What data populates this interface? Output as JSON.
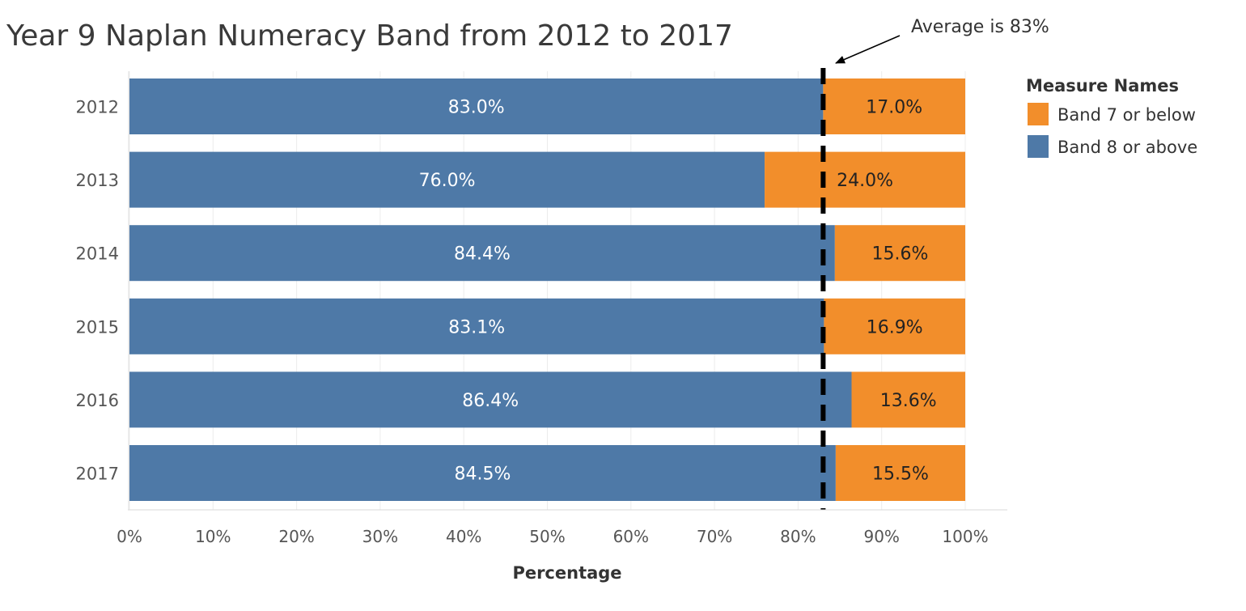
{
  "chart_data": {
    "type": "bar",
    "orientation": "horizontal",
    "stacked": true,
    "title": "Year 9 Naplan Numeracy Band from 2012 to 2017",
    "xlabel": "Percentage",
    "ylabel": "",
    "xlim": [
      0,
      100
    ],
    "x_ticks": [
      "0%",
      "10%",
      "20%",
      "30%",
      "40%",
      "50%",
      "60%",
      "70%",
      "80%",
      "90%",
      "100%"
    ],
    "categories": [
      "2012",
      "2013",
      "2014",
      "2015",
      "2016",
      "2017"
    ],
    "series": [
      {
        "name": "Band 8 or above",
        "color": "#4e79a7",
        "values": [
          83.0,
          76.0,
          84.4,
          83.1,
          86.4,
          84.5
        ],
        "labels": [
          "83.0%",
          "76.0%",
          "84.4%",
          "83.1%",
          "86.4%",
          "84.5%"
        ]
      },
      {
        "name": "Band 7 or below",
        "color": "#f28e2b",
        "values": [
          17.0,
          24.0,
          15.6,
          16.9,
          13.6,
          15.5
        ],
        "labels": [
          "17.0%",
          "24.0%",
          "15.6%",
          "16.9%",
          "13.6%",
          "15.5%"
        ]
      }
    ],
    "reference_line": {
      "value": 83,
      "style": "dashed",
      "color": "#000000"
    },
    "annotation": {
      "text": "Average is 83%"
    },
    "legend": {
      "title": "Measure Names",
      "position": "right",
      "items": [
        {
          "name": "Band 7 or below",
          "color": "#f28e2b"
        },
        {
          "name": "Band 8 or above",
          "color": "#4e79a7"
        }
      ]
    },
    "grid": true
  }
}
